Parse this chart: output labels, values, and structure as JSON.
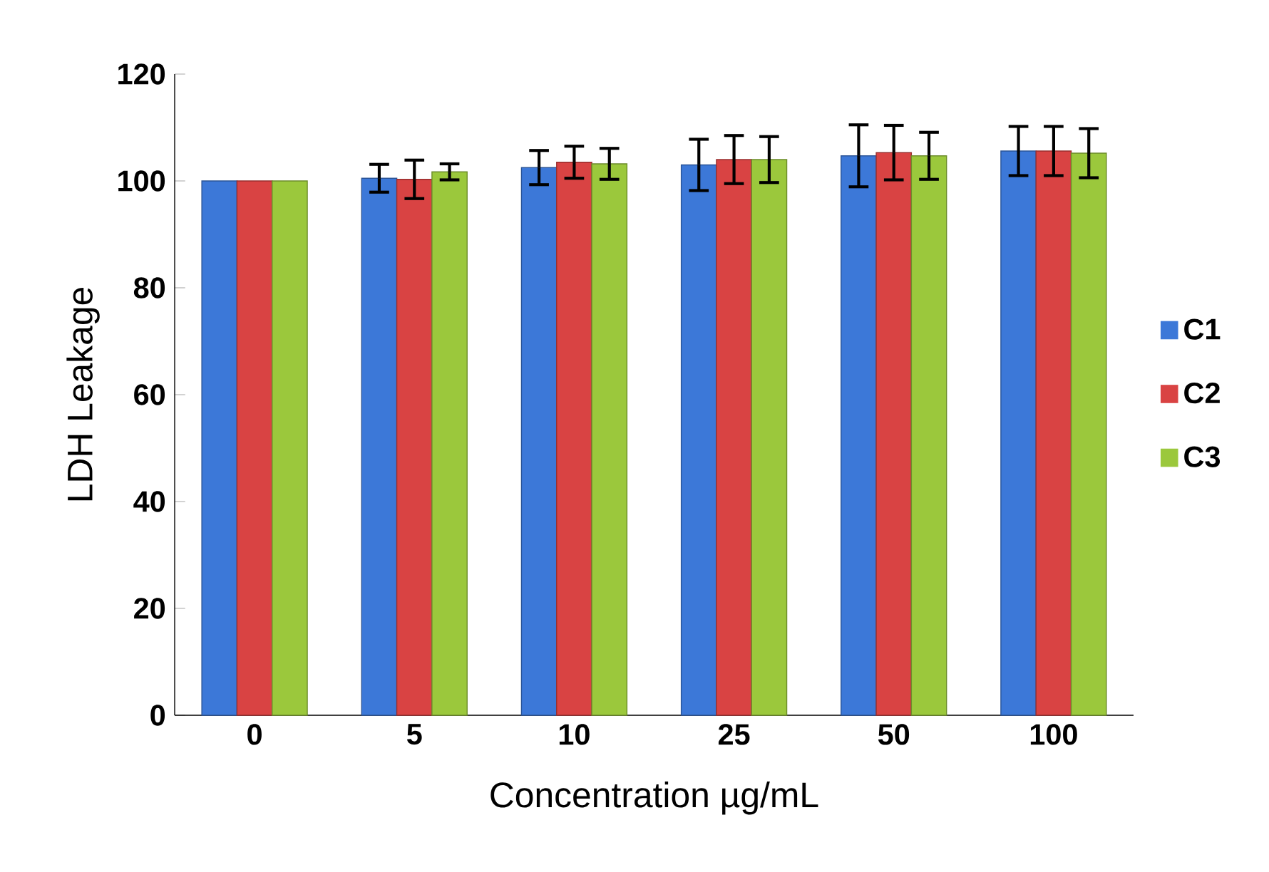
{
  "chart_data": {
    "type": "bar",
    "xlabel": "Concentration µg/mL",
    "ylabel": "LDH Leakage",
    "categories": [
      "0",
      "5",
      "10",
      "25",
      "50",
      "100"
    ],
    "series": [
      {
        "name": "C1",
        "color": "#3c78d8",
        "values": [
          100,
          100.5,
          102.5,
          103,
          104.7,
          105.6
        ],
        "errors": [
          null,
          2.6,
          3.2,
          4.8,
          5.8,
          4.6
        ]
      },
      {
        "name": "C2",
        "color": "#d94343",
        "values": [
          100,
          100.3,
          103.5,
          104,
          105.3,
          105.6
        ],
        "errors": [
          null,
          3.6,
          3,
          4.5,
          5.1,
          4.6
        ]
      },
      {
        "name": "C3",
        "color": "#9bc83c",
        "values": [
          100,
          101.7,
          103.2,
          104,
          104.7,
          105.2
        ],
        "errors": [
          null,
          1.5,
          2.9,
          4.3,
          4.4,
          4.6
        ]
      }
    ],
    "ylim": [
      0,
      120
    ],
    "yticks": [
      0,
      20,
      40,
      60,
      80,
      100,
      120
    ],
    "grid": false,
    "legend": "right"
  }
}
